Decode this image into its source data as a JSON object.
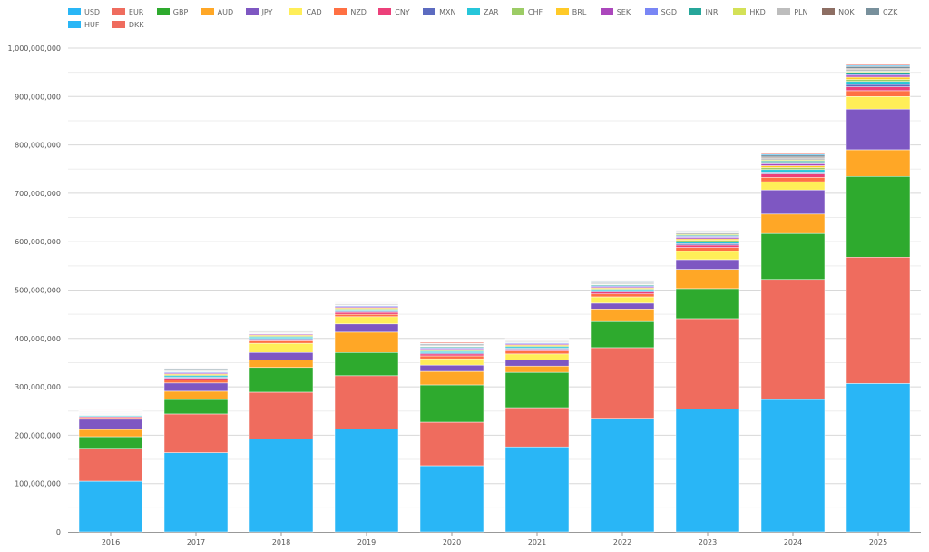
{
  "chart_data": {
    "type": "bar",
    "stacked": true,
    "title": "",
    "xlabel": "",
    "ylabel": "",
    "ylim": [
      0,
      1000000000
    ],
    "y_ticks": [
      "0",
      "100,000,000",
      "200,000,000",
      "300,000,000",
      "400,000,000",
      "500,000,000",
      "600,000,000",
      "700,000,000",
      "800,000,000",
      "900,000,000",
      "1,000,000,000"
    ],
    "grid": true,
    "legend_position": "top-left",
    "categories": [
      "2016",
      "2017",
      "2018",
      "2019",
      "2020",
      "2021",
      "2022",
      "2023",
      "2024",
      "2025"
    ],
    "series": [
      {
        "name": "USD",
        "color": "#29b6f6",
        "values": [
          105000000,
          164000000,
          192000000,
          213000000,
          137000000,
          176000000,
          235000000,
          254000000,
          274000000,
          307000000
        ]
      },
      {
        "name": "EUR",
        "color": "#ef6c5e",
        "values": [
          68000000,
          80000000,
          97000000,
          110000000,
          90000000,
          81000000,
          146000000,
          187000000,
          248000000,
          261000000
        ]
      },
      {
        "name": "GBP",
        "color": "#2eaa2e",
        "values": [
          24000000,
          30000000,
          51000000,
          48000000,
          77000000,
          73000000,
          54000000,
          62000000,
          95000000,
          167000000
        ]
      },
      {
        "name": "AUD",
        "color": "#ffa726",
        "values": [
          15000000,
          17000000,
          16000000,
          42000000,
          28000000,
          13000000,
          26000000,
          40000000,
          40000000,
          55000000
        ]
      },
      {
        "name": "JPY",
        "color": "#7e57c2",
        "values": [
          21000000,
          17000000,
          15000000,
          17000000,
          13000000,
          13000000,
          12000000,
          20000000,
          50000000,
          84000000
        ]
      },
      {
        "name": "CAD",
        "color": "#ffee58",
        "values": [
          0,
          0,
          19000000,
          15000000,
          13000000,
          12000000,
          13000000,
          17000000,
          17000000,
          26000000
        ]
      },
      {
        "name": "NZD",
        "color": "#ff7043",
        "values": [
          3000000,
          6000000,
          5000000,
          5000000,
          6000000,
          6000000,
          6000000,
          8000000,
          9000000,
          12000000
        ]
      },
      {
        "name": "CNY",
        "color": "#ec407a",
        "values": [
          2000000,
          4000000,
          3000000,
          4000000,
          4000000,
          4000000,
          4000000,
          5000000,
          7000000,
          8000000
        ]
      },
      {
        "name": "MXN",
        "color": "#5c6bc0",
        "values": [
          1000000,
          2000000,
          2000000,
          2000000,
          2000000,
          2000000,
          2000000,
          3000000,
          4000000,
          5000000
        ]
      },
      {
        "name": "ZAR",
        "color": "#26c6da",
        "values": [
          2000000,
          3000000,
          3000000,
          3000000,
          3000000,
          3000000,
          3000000,
          4000000,
          5000000,
          6000000
        ]
      },
      {
        "name": "CHF",
        "color": "#9ccc65",
        "values": [
          1000000,
          2000000,
          2000000,
          2000000,
          2000000,
          2000000,
          2000000,
          3000000,
          4000000,
          4000000
        ]
      },
      {
        "name": "BRL",
        "color": "#ffca28",
        "values": [
          1000000,
          2000000,
          2000000,
          2000000,
          2000000,
          2000000,
          2000000,
          3000000,
          4000000,
          5000000
        ]
      },
      {
        "name": "SEK",
        "color": "#ab47bc",
        "values": [
          1000000,
          2000000,
          2000000,
          2000000,
          2000000,
          2000000,
          2000000,
          3000000,
          4000000,
          4000000
        ]
      },
      {
        "name": "SGD",
        "color": "#7986f5",
        "values": [
          1000000,
          2000000,
          1000000,
          2000000,
          2000000,
          2000000,
          2000000,
          2000000,
          3000000,
          3000000
        ]
      },
      {
        "name": "INR",
        "color": "#26a69a",
        "values": [
          1000000,
          1000000,
          1000000,
          1000000,
          2000000,
          1000000,
          2000000,
          2000000,
          3000000,
          3000000
        ]
      },
      {
        "name": "HKD",
        "color": "#d4e157",
        "values": [
          1000000,
          1000000,
          1000000,
          1000000,
          1000000,
          1000000,
          1000000,
          2000000,
          2000000,
          2000000
        ]
      },
      {
        "name": "PLN",
        "color": "#bdbdbd",
        "values": [
          1000000,
          2000000,
          2000000,
          2000000,
          2000000,
          2000000,
          2000000,
          3000000,
          4000000,
          4000000
        ]
      },
      {
        "name": "NOK",
        "color": "#8d6e63",
        "values": [
          1000000,
          1000000,
          1000000,
          1000000,
          1000000,
          1000000,
          1000000,
          1000000,
          2000000,
          2000000
        ]
      },
      {
        "name": "CZK",
        "color": "#78909c",
        "values": [
          1000000,
          2000000,
          1000000,
          1000000,
          2000000,
          2000000,
          2000000,
          3000000,
          4000000,
          4000000
        ]
      },
      {
        "name": "HUF",
        "color": "#29b6f6",
        "values": [
          1000000,
          1000000,
          1000000,
          1000000,
          1000000,
          1000000,
          1000000,
          1000000,
          2000000,
          2000000
        ]
      },
      {
        "name": "DKK",
        "color": "#ef6c5e",
        "values": [
          1000000,
          1000000,
          1000000,
          1000000,
          2000000,
          1000000,
          2000000,
          1000000,
          3000000,
          2000000
        ]
      }
    ]
  }
}
